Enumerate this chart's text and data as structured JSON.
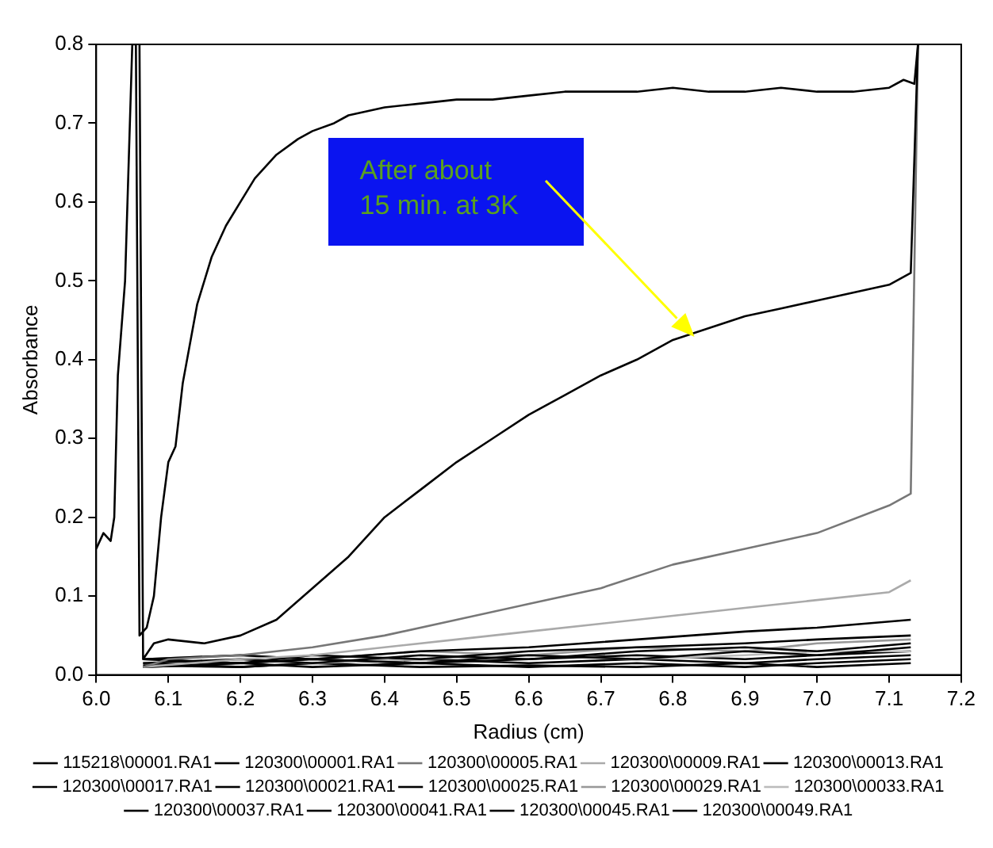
{
  "chart_data": {
    "type": "line",
    "xlabel": "Radius (cm)",
    "ylabel": "Absorbance",
    "xlim": [
      6.0,
      7.2
    ],
    "xticks": [
      {
        "value": 6.0,
        "label": "6.0"
      },
      6.1,
      6.2,
      6.3,
      6.4,
      6.5,
      6.6,
      6.7,
      6.8,
      6.9,
      {
        "value": 7.0,
        "label": "7.0"
      },
      7.1,
      7.2
    ],
    "ylim": [
      0,
      0.8
    ],
    "yticks": [
      {
        "value": 0,
        "label": "0.0"
      },
      0.1,
      0.2,
      0.3,
      0.4,
      0.5,
      0.6,
      0.7,
      0.8
    ],
    "grid": false,
    "legend": "bottom",
    "marker": "none",
    "line_style": "solid",
    "annotations": [
      "After about\n15 min. at 3K"
    ],
    "series": [
      {
        "name": "115218\\00001.RA1",
        "color": "#000000",
        "x": [
          6.0,
          6.01,
          6.02,
          6.025,
          6.03,
          6.04,
          6.05,
          6.055,
          6.06,
          6.07,
          6.08,
          6.09,
          6.1,
          6.11,
          6.12,
          6.14,
          6.16,
          6.18,
          6.2,
          6.22,
          6.25,
          6.28,
          6.3,
          6.33,
          6.35,
          6.4,
          6.45,
          6.5,
          6.55,
          6.6,
          6.65,
          6.7,
          6.75,
          6.8,
          6.85,
          6.9,
          6.95,
          7.0,
          7.05,
          7.1,
          7.12,
          7.135,
          7.14
        ],
        "values": [
          0.16,
          0.18,
          0.17,
          0.2,
          0.38,
          0.5,
          0.8,
          0.8,
          0.05,
          0.06,
          0.1,
          0.2,
          0.27,
          0.29,
          0.37,
          0.47,
          0.53,
          0.57,
          0.6,
          0.63,
          0.66,
          0.68,
          0.69,
          0.7,
          0.71,
          0.72,
          0.725,
          0.73,
          0.73,
          0.735,
          0.74,
          0.74,
          0.74,
          0.745,
          0.74,
          0.74,
          0.745,
          0.74,
          0.74,
          0.745,
          0.755,
          0.75,
          0.8
        ]
      },
      {
        "name": "120300\\00001.RA1",
        "color": "#000000",
        "x": [
          6.06,
          6.065,
          6.08,
          6.1,
          6.15,
          6.2,
          6.25,
          6.3,
          6.35,
          6.4,
          6.45,
          6.5,
          6.55,
          6.6,
          6.65,
          6.7,
          6.75,
          6.8,
          6.85,
          6.9,
          6.95,
          7.0,
          7.05,
          7.1,
          7.13,
          7.14
        ],
        "values": [
          0.8,
          0.02,
          0.04,
          0.045,
          0.04,
          0.05,
          0.07,
          0.11,
          0.15,
          0.2,
          0.235,
          0.27,
          0.3,
          0.33,
          0.355,
          0.38,
          0.4,
          0.425,
          0.44,
          0.455,
          0.465,
          0.475,
          0.485,
          0.495,
          0.51,
          0.8
        ]
      },
      {
        "name": "120300\\00005.RA1",
        "color": "#777777",
        "x": [
          6.065,
          6.1,
          6.2,
          6.3,
          6.4,
          6.5,
          6.6,
          6.7,
          6.8,
          6.9,
          7.0,
          7.1,
          7.13,
          7.14
        ],
        "values": [
          0.01,
          0.02,
          0.025,
          0.035,
          0.05,
          0.07,
          0.09,
          0.11,
          0.14,
          0.16,
          0.18,
          0.215,
          0.23,
          0.8
        ]
      },
      {
        "name": "120300\\00009.RA1",
        "color": "#aaaaaa",
        "x": [
          6.065,
          6.2,
          6.3,
          6.4,
          6.5,
          6.6,
          6.7,
          6.8,
          6.9,
          7.0,
          7.1,
          7.13
        ],
        "values": [
          0.01,
          0.02,
          0.025,
          0.035,
          0.045,
          0.055,
          0.065,
          0.075,
          0.085,
          0.095,
          0.105,
          0.12
        ]
      },
      {
        "name": "120300\\00013.RA1",
        "color": "#000000",
        "x": [
          6.065,
          6.2,
          6.3,
          6.45,
          6.6,
          6.75,
          6.9,
          7.0,
          7.13
        ],
        "values": [
          0.02,
          0.025,
          0.02,
          0.03,
          0.035,
          0.045,
          0.055,
          0.06,
          0.07
        ]
      },
      {
        "name": "120300\\00017.RA1",
        "color": "#000000",
        "x": [
          6.065,
          6.2,
          6.3,
          6.45,
          6.6,
          6.75,
          6.9,
          7.0,
          7.13
        ],
        "values": [
          0.02,
          0.015,
          0.025,
          0.02,
          0.03,
          0.035,
          0.04,
          0.045,
          0.05
        ]
      },
      {
        "name": "120300\\00021.RA1",
        "color": "#000000",
        "x": [
          6.065,
          6.2,
          6.3,
          6.45,
          6.6,
          6.75,
          6.9,
          7.0,
          7.13
        ],
        "values": [
          0.015,
          0.02,
          0.015,
          0.025,
          0.02,
          0.03,
          0.035,
          0.03,
          0.04
        ]
      },
      {
        "name": "120300\\00025.RA1",
        "color": "#000000",
        "x": [
          6.065,
          6.2,
          6.3,
          6.45,
          6.6,
          6.75,
          6.9,
          7.0,
          7.13
        ],
        "values": [
          0.02,
          0.015,
          0.02,
          0.015,
          0.025,
          0.02,
          0.03,
          0.025,
          0.035
        ]
      },
      {
        "name": "120300\\00029.RA1",
        "color": "#999999",
        "x": [
          6.065,
          6.2,
          6.3,
          6.45,
          6.6,
          6.75,
          6.9,
          7.0,
          7.13
        ],
        "values": [
          0.02,
          0.025,
          0.02,
          0.03,
          0.025,
          0.035,
          0.03,
          0.04,
          0.045
        ]
      },
      {
        "name": "120300\\00033.RA1",
        "color": "#bbbbbb",
        "x": [
          6.065,
          6.2,
          6.3,
          6.45,
          6.6,
          6.75,
          6.9,
          7.0,
          7.13
        ],
        "values": [
          0.015,
          0.02,
          0.015,
          0.02,
          0.025,
          0.02,
          0.025,
          0.03,
          0.03
        ]
      },
      {
        "name": "120300\\00037.RA1",
        "color": "#000000",
        "x": [
          6.065,
          6.2,
          6.3,
          6.45,
          6.6,
          6.75,
          6.9,
          7.0,
          7.13
        ],
        "values": [
          0.01,
          0.015,
          0.02,
          0.015,
          0.02,
          0.025,
          0.02,
          0.025,
          0.03
        ]
      },
      {
        "name": "120300\\00041.RA1",
        "color": "#000000",
        "x": [
          6.065,
          6.2,
          6.3,
          6.45,
          6.6,
          6.75,
          6.9,
          7.0,
          7.13
        ],
        "values": [
          0.015,
          0.01,
          0.015,
          0.02,
          0.015,
          0.02,
          0.015,
          0.02,
          0.025
        ]
      },
      {
        "name": "120300\\00045.RA1",
        "color": "#000000",
        "x": [
          6.065,
          6.2,
          6.3,
          6.45,
          6.6,
          6.75,
          6.9,
          7.0,
          7.13
        ],
        "values": [
          0.01,
          0.015,
          0.01,
          0.015,
          0.01,
          0.015,
          0.01,
          0.015,
          0.02
        ]
      },
      {
        "name": "120300\\00049.RA1",
        "color": "#000000",
        "x": [
          6.065,
          6.2,
          6.3,
          6.45,
          6.6,
          6.75,
          6.9,
          7.0,
          7.13
        ],
        "values": [
          0.012,
          0.01,
          0.015,
          0.01,
          0.012,
          0.01,
          0.015,
          0.01,
          0.015
        ]
      }
    ]
  }
}
